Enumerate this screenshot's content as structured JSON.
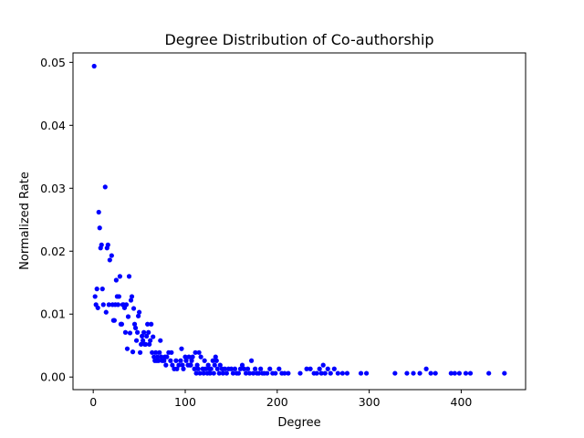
{
  "chart_data": {
    "type": "scatter",
    "title": "Degree Distribution of Co-authorship",
    "xlabel": "Degree",
    "ylabel": "Normalized Rate",
    "xlim": [
      -22,
      470
    ],
    "ylim": [
      -0.002,
      0.0515
    ],
    "xticks": [
      0,
      100,
      200,
      300,
      400
    ],
    "yticks": [
      0.0,
      0.01,
      0.02,
      0.03,
      0.04,
      0.05
    ],
    "ytick_labels": [
      "0.00",
      "0.01",
      "0.02",
      "0.03",
      "0.04",
      "0.05"
    ],
    "grid": false,
    "marker_color": "#0000ff",
    "series": [
      {
        "points": [
          [
            1,
            0.0494
          ],
          [
            2,
            0.0128
          ],
          [
            3,
            0.0115
          ],
          [
            4,
            0.014
          ],
          [
            5,
            0.011
          ],
          [
            6,
            0.0262
          ],
          [
            7,
            0.0237
          ],
          [
            8,
            0.0205
          ],
          [
            9,
            0.021
          ],
          [
            10,
            0.014
          ],
          [
            11,
            0.0115
          ],
          [
            13,
            0.0302
          ],
          [
            14,
            0.0103
          ],
          [
            15,
            0.0205
          ],
          [
            16,
            0.021
          ],
          [
            17,
            0.0115
          ],
          [
            18,
            0.0186
          ],
          [
            20,
            0.0193
          ],
          [
            21,
            0.0115
          ],
          [
            22,
            0.009
          ],
          [
            23,
            0.009
          ],
          [
            24,
            0.0115
          ],
          [
            25,
            0.0154
          ],
          [
            26,
            0.0128
          ],
          [
            27,
            0.0115
          ],
          [
            28,
            0.0128
          ],
          [
            29,
            0.016
          ],
          [
            30,
            0.0084
          ],
          [
            31,
            0.0084
          ],
          [
            32,
            0.0115
          ],
          [
            33,
            0.0115
          ],
          [
            34,
            0.011
          ],
          [
            35,
            0.0071
          ],
          [
            36,
            0.0115
          ],
          [
            37,
            0.0045
          ],
          [
            38,
            0.0096
          ],
          [
            39,
            0.016
          ],
          [
            40,
            0.007
          ],
          [
            41,
            0.0122
          ],
          [
            42,
            0.0128
          ],
          [
            43,
            0.004
          ],
          [
            44,
            0.0109
          ],
          [
            45,
            0.0084
          ],
          [
            46,
            0.0078
          ],
          [
            47,
            0.0058
          ],
          [
            48,
            0.0071
          ],
          [
            49,
            0.0097
          ],
          [
            50,
            0.0103
          ],
          [
            51,
            0.0039
          ],
          [
            52,
            0.0052
          ],
          [
            53,
            0.0065
          ],
          [
            54,
            0.0058
          ],
          [
            55,
            0.0071
          ],
          [
            56,
            0.0052
          ],
          [
            57,
            0.0052
          ],
          [
            58,
            0.0065
          ],
          [
            59,
            0.0084
          ],
          [
            60,
            0.0071
          ],
          [
            61,
            0.0052
          ],
          [
            62,
            0.0058
          ],
          [
            63,
            0.0084
          ],
          [
            64,
            0.0039
          ],
          [
            65,
            0.0064
          ],
          [
            66,
            0.0032
          ],
          [
            67,
            0.0026
          ],
          [
            68,
            0.0039
          ],
          [
            69,
            0.0026
          ],
          [
            70,
            0.0032
          ],
          [
            71,
            0.0026
          ],
          [
            72,
            0.0039
          ],
          [
            73,
            0.0058
          ],
          [
            74,
            0.0032
          ],
          [
            75,
            0.0026
          ],
          [
            77,
            0.0026
          ],
          [
            78,
            0.0032
          ],
          [
            79,
            0.0019
          ],
          [
            80,
            0.0032
          ],
          [
            82,
            0.0039
          ],
          [
            84,
            0.0026
          ],
          [
            85,
            0.0039
          ],
          [
            86,
            0.0019
          ],
          [
            88,
            0.0013
          ],
          [
            90,
            0.0026
          ],
          [
            91,
            0.0013
          ],
          [
            93,
            0.0019
          ],
          [
            95,
            0.0026
          ],
          [
            96,
            0.0045
          ],
          [
            97,
            0.0019
          ],
          [
            98,
            0.0013
          ],
          [
            100,
            0.0032
          ],
          [
            101,
            0.0026
          ],
          [
            103,
            0.0019
          ],
          [
            104,
            0.0032
          ],
          [
            105,
            0.0019
          ],
          [
            106,
            0.0019
          ],
          [
            107,
            0.0026
          ],
          [
            108,
            0.0032
          ],
          [
            110,
            0.0013
          ],
          [
            111,
            0.0039
          ],
          [
            112,
            0.0006
          ],
          [
            113,
            0.0019
          ],
          [
            114,
            0.0013
          ],
          [
            115,
            0.0039
          ],
          [
            116,
            0.0006
          ],
          [
            117,
            0.0032
          ],
          [
            119,
            0.0013
          ],
          [
            120,
            0.0006
          ],
          [
            121,
            0.0026
          ],
          [
            122,
            0.0013
          ],
          [
            124,
            0.0006
          ],
          [
            125,
            0.0019
          ],
          [
            126,
            0.0013
          ],
          [
            127,
            0.0006
          ],
          [
            128,
            0.0013
          ],
          [
            130,
            0.0026
          ],
          [
            131,
            0.0006
          ],
          [
            132,
            0.0019
          ],
          [
            133,
            0.0032
          ],
          [
            134,
            0.0026
          ],
          [
            135,
            0.0013
          ],
          [
            137,
            0.0006
          ],
          [
            138,
            0.0019
          ],
          [
            140,
            0.0013
          ],
          [
            141,
            0.0006
          ],
          [
            143,
            0.0013
          ],
          [
            145,
            0.0006
          ],
          [
            147,
            0.0013
          ],
          [
            150,
            0.0013
          ],
          [
            152,
            0.0006
          ],
          [
            154,
            0.0013
          ],
          [
            156,
            0.0006
          ],
          [
            158,
            0.0006
          ],
          [
            160,
            0.0013
          ],
          [
            162,
            0.0019
          ],
          [
            164,
            0.0013
          ],
          [
            166,
            0.0006
          ],
          [
            168,
            0.0013
          ],
          [
            170,
            0.0006
          ],
          [
            172,
            0.0026
          ],
          [
            174,
            0.0006
          ],
          [
            176,
            0.0013
          ],
          [
            178,
            0.0006
          ],
          [
            180,
            0.0006
          ],
          [
            182,
            0.0013
          ],
          [
            184,
            0.0006
          ],
          [
            186,
            0.0006
          ],
          [
            189,
            0.0006
          ],
          [
            192,
            0.0013
          ],
          [
            195,
            0.0006
          ],
          [
            198,
            0.0006
          ],
          [
            202,
            0.0013
          ],
          [
            205,
            0.0006
          ],
          [
            208,
            0.0006
          ],
          [
            212,
            0.0006
          ],
          [
            225,
            0.0006
          ],
          [
            232,
            0.0013
          ],
          [
            236,
            0.0013
          ],
          [
            240,
            0.0006
          ],
          [
            243,
            0.0006
          ],
          [
            246,
            0.0013
          ],
          [
            248,
            0.0006
          ],
          [
            250,
            0.0019
          ],
          [
            252,
            0.0006
          ],
          [
            255,
            0.0013
          ],
          [
            258,
            0.0006
          ],
          [
            262,
            0.0013
          ],
          [
            266,
            0.0006
          ],
          [
            271,
            0.0006
          ],
          [
            276,
            0.0006
          ],
          [
            291,
            0.0006
          ],
          [
            297,
            0.0006
          ],
          [
            328,
            0.0006
          ],
          [
            341,
            0.0006
          ],
          [
            348,
            0.0006
          ],
          [
            355,
            0.0006
          ],
          [
            362,
            0.0013
          ],
          [
            367,
            0.0006
          ],
          [
            372,
            0.0006
          ],
          [
            389,
            0.0006
          ],
          [
            393,
            0.0006
          ],
          [
            398,
            0.0006
          ],
          [
            405,
            0.0006
          ],
          [
            410,
            0.0006
          ],
          [
            430,
            0.0006
          ],
          [
            447,
            0.0006
          ]
        ]
      }
    ]
  }
}
